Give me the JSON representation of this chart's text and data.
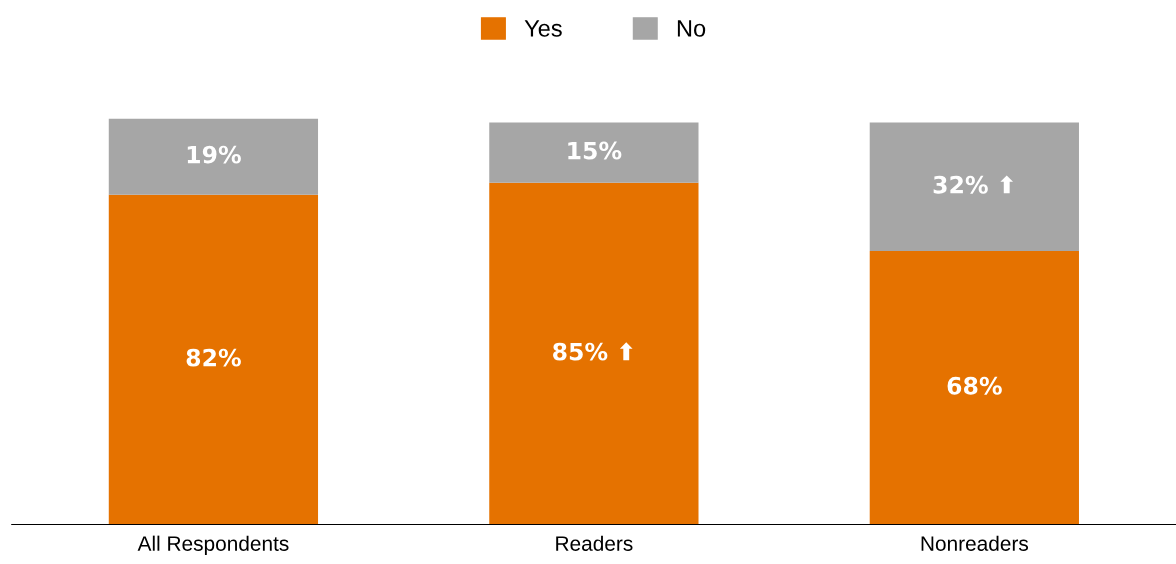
{
  "chart_data": {
    "type": "bar",
    "stacked": true,
    "categories": [
      "All Respondents",
      "Readers",
      "Nonreaders"
    ],
    "series": [
      {
        "name": "Yes",
        "color": "#e57200",
        "values": [
          82,
          85,
          68
        ],
        "value_labels": [
          "82%",
          "85% ⬆",
          "68%"
        ]
      },
      {
        "name": "No",
        "color": "#a6a6a6",
        "values": [
          19,
          15,
          32
        ],
        "value_labels": [
          "19%",
          "15%",
          "32% ⬆"
        ]
      }
    ],
    "legend": "top",
    "grid": false
  }
}
